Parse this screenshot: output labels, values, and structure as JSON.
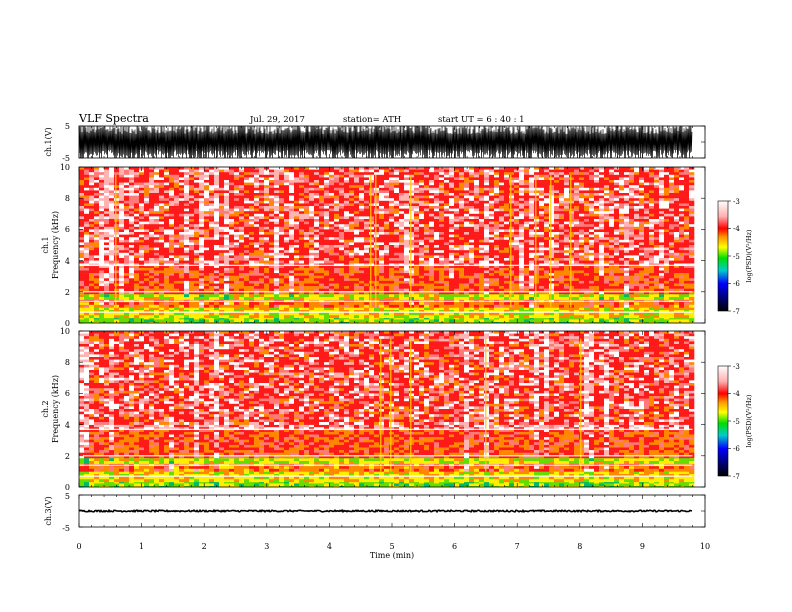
{
  "header": {
    "title": "VLF  Spectra",
    "date": "Jul.  29, 2017",
    "station": "station= ATH",
    "start": "start  UT  =   6  : 40 : 1"
  },
  "colors": {
    "background": "#ffffff",
    "axes": "#000000",
    "waveform": "#000000"
  },
  "chart_data": [
    {
      "type": "line",
      "panel": "ch1-waveform",
      "ylabel": "ch.1(V)",
      "yticks": [
        "5",
        "-5"
      ],
      "ylim": [
        -5,
        5
      ],
      "xlim": [
        0,
        10
      ],
      "description_values": {
        "amplitude_min": -5,
        "amplitude_max": 5,
        "x_end_min": 9.8
      }
    },
    {
      "type": "heatmap",
      "panel": "ch1-spectrogram",
      "ylabel_lines": [
        "ch.1",
        "Frequency  (kHz)"
      ],
      "yticks": [
        "0",
        "2",
        "4",
        "6",
        "8",
        "10"
      ],
      "ylim": [
        0,
        10
      ],
      "xlim": [
        0,
        10
      ],
      "x_end_min": 9.8,
      "colorbar": {
        "label": "log(PSD)(V²/Hz)",
        "ticks": [
          "-3",
          "-4",
          "-5",
          "-6",
          "-7"
        ],
        "range": [
          -7,
          -3
        ]
      },
      "band_levels": [
        {
          "f_from": 0,
          "f_to": 0.4,
          "level": -5.0
        },
        {
          "f_from": 0.4,
          "f_to": 1.0,
          "level": -4.6
        },
        {
          "f_from": 1.0,
          "f_to": 1.5,
          "level": -4.2
        },
        {
          "f_from": 1.5,
          "f_to": 2.0,
          "level": -4.8
        },
        {
          "f_from": 2.0,
          "f_to": 3.7,
          "level": -4.0
        },
        {
          "f_from": 3.7,
          "f_to": 4.0,
          "level": -3.5
        },
        {
          "f_from": 4.0,
          "f_to": 10.0,
          "level": -3.8
        }
      ]
    },
    {
      "type": "heatmap",
      "panel": "ch2-spectrogram",
      "ylabel_lines": [
        "ch.2",
        "Frequency  (kHz)"
      ],
      "yticks": [
        "0",
        "2",
        "4",
        "6",
        "8",
        "10"
      ],
      "ylim": [
        0,
        10
      ],
      "xlim": [
        0,
        10
      ],
      "x_end_min": 9.8,
      "colorbar": {
        "label": "log(PSD)(V²/Hz)",
        "ticks": [
          "-3",
          "-4",
          "-5",
          "-6",
          "-7"
        ],
        "range": [
          -7,
          -3
        ]
      },
      "band_levels": [
        {
          "f_from": 0,
          "f_to": 0.4,
          "level": -5.0
        },
        {
          "f_from": 0.4,
          "f_to": 1.0,
          "level": -4.6
        },
        {
          "f_from": 1.0,
          "f_to": 1.5,
          "level": -4.2
        },
        {
          "f_from": 1.5,
          "f_to": 2.0,
          "level": -4.8
        },
        {
          "f_from": 2.0,
          "f_to": 3.7,
          "level": -4.0
        },
        {
          "f_from": 3.7,
          "f_to": 4.0,
          "level": -3.5
        },
        {
          "f_from": 4.0,
          "f_to": 10.0,
          "level": -3.8
        }
      ]
    },
    {
      "type": "line",
      "panel": "ch3-waveform",
      "ylabel": "ch.3(V)",
      "yticks": [
        "5",
        "-5"
      ],
      "ylim": [
        -5,
        5
      ],
      "xlim": [
        0,
        10
      ],
      "xlabel": "Time  (min)",
      "xticks": [
        "0",
        "1",
        "2",
        "3",
        "4",
        "5",
        "6",
        "7",
        "8",
        "9",
        "10"
      ],
      "description_values": {
        "baseline": 0,
        "x_end_min": 9.8
      }
    }
  ]
}
